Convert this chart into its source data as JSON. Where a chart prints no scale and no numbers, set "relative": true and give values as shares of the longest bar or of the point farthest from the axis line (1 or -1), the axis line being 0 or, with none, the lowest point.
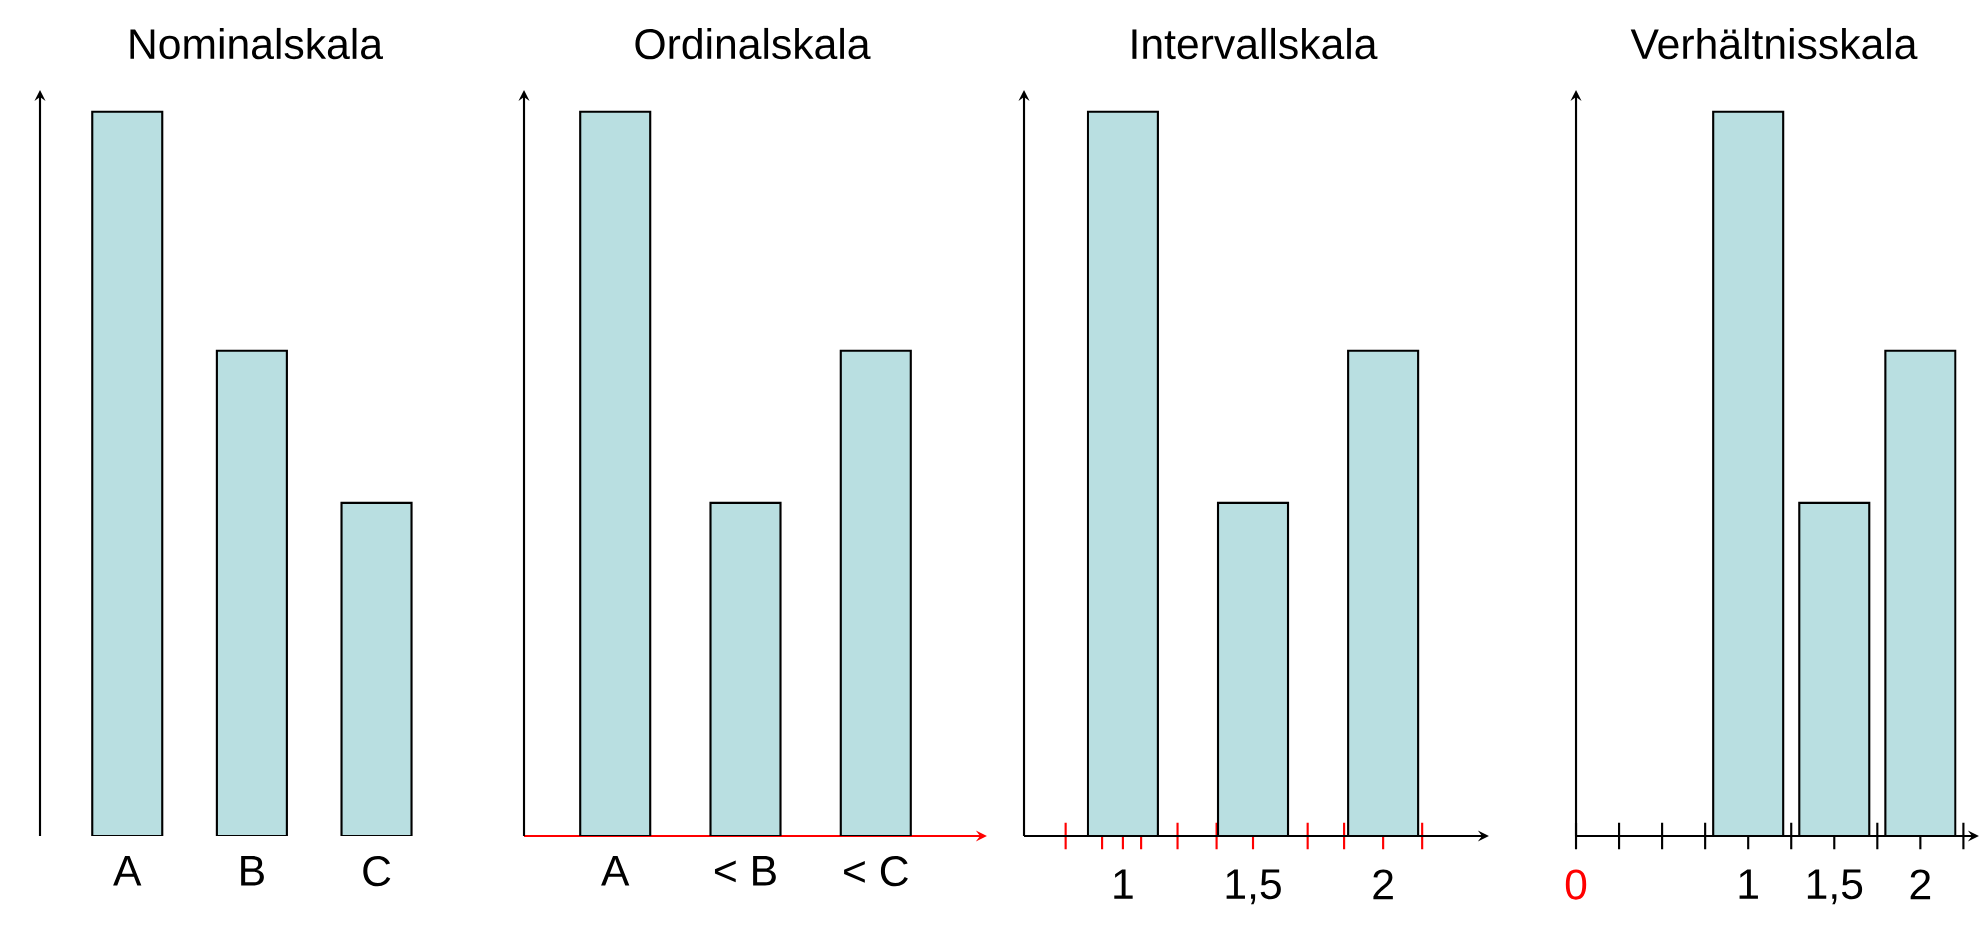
{
  "chart_data": [
    {
      "type": "bar",
      "title": "Nominalskala",
      "categories": [
        "A",
        "B",
        "C"
      ],
      "values": [
        1,
        0.67,
        0.46
      ],
      "color": "#b9dfe1",
      "relative": true,
      "tick_labels": "x"
    },
    {
      "type": "bar",
      "title": "Ordinalskala",
      "categories": [
        "A",
        "< B",
        "< C"
      ],
      "values": [
        1,
        0.46,
        0.67
      ],
      "color": "#b9dfe1",
      "relative": true,
      "tick_labels": "x"
    },
    {
      "type": "bar",
      "title": "Intervallskala",
      "x": [
        1,
        1.5,
        2
      ],
      "values": [
        1,
        0.46,
        0.67
      ],
      "color": "#b9dfe1",
      "relative": true,
      "tick_labels": "x",
      "xlim": [
        0.62,
        2.38
      ],
      "xticks": [
        {
          "value": 0.78,
          "label": null
        },
        {
          "value": 0.92,
          "label": null
        },
        1,
        {
          "value": 1.07,
          "label": null
        },
        {
          "value": 1.21,
          "label": null
        },
        {
          "value": 1.36,
          "label": null
        },
        {
          "value": 1.5,
          "label": "1,5"
        },
        {
          "value": 1.71,
          "label": null
        },
        {
          "value": 1.85,
          "label": null
        },
        2,
        {
          "value": 2.15,
          "label": null
        }
      ]
    },
    {
      "type": "bar",
      "title": "Verhältnisskala",
      "x": [
        1,
        1.5,
        2
      ],
      "values": [
        1,
        0.46,
        0.67
      ],
      "color": "#b9dfe1",
      "relative": true,
      "tick_labels": "x",
      "xlim": [
        0,
        2.3
      ],
      "xticks": [
        0,
        {
          "value": 0.25,
          "label": null
        },
        {
          "value": 0.5,
          "label": null
        },
        {
          "value": 0.75,
          "label": null
        },
        1,
        {
          "value": 1.25,
          "label": null
        },
        {
          "value": 1.5,
          "label": "1,5"
        },
        {
          "value": 1.75,
          "label": null
        },
        2,
        {
          "value": 2.25,
          "label": null
        }
      ]
    }
  ]
}
